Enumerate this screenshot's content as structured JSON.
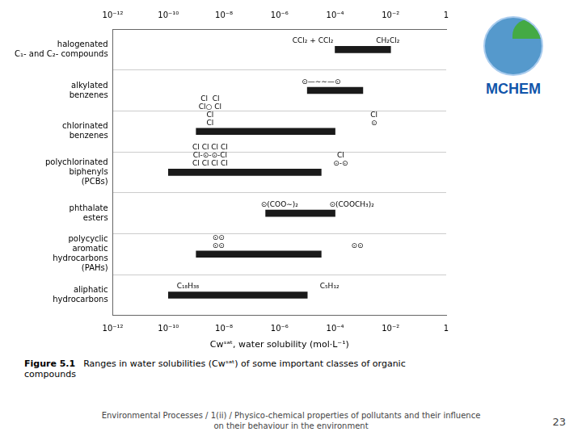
{
  "chart_data": {
    "type": "bar",
    "orientation": "horizontal",
    "title": "Figure 5.1",
    "caption": "Ranges in water solubilities (Cwˢᵃᵗ) of some important classes of organic\ncompounds",
    "xlabel": "Cwˢᵃᵗ, water solubility (mol·L⁻¹)",
    "categories": [
      "halogenated\nC₁- and C₂- compounds",
      "alkylated\nbenzenes",
      "chlorinated\nbenzenes",
      "polychlorinated\nbiphenyls\n(PCBs)",
      "phthalate\nesters",
      "polycyclic\naromatic\nhydrocarbons\n(PAHs)",
      "aliphatic\nhydrocarbons"
    ],
    "values": [
      [
        0.0001,
        0.01
      ],
      [
        1e-05,
        0.001
      ],
      [
        1e-09,
        0.0001
      ],
      [
        1e-10,
        3.1622776601683795e-05
      ],
      [
        3.162277660168379e-07,
        0.0001
      ],
      [
        1e-09,
        3.1622776601683795e-05
      ],
      [
        1e-10,
        1e-05
      ]
    ],
    "color": "#1a1a1a",
    "log": "x",
    "xlim": [
      1e-12,
      1
    ],
    "xticks": [
      {
        "value": 1e-12,
        "label": "10⁻¹²"
      },
      {
        "value": 1e-10,
        "label": "10⁻¹⁰"
      },
      {
        "value": 1e-08,
        "label": "10⁻⁸"
      },
      {
        "value": 1e-06,
        "label": "10⁻⁶"
      },
      {
        "value": 0.0001,
        "label": "10⁻⁴"
      },
      {
        "value": 0.01,
        "label": "10⁻²"
      },
      1
    ],
    "grid": false,
    "annotations": [
      {
        "text": "CCl₂ + CCl₂",
        "x": 1.5848931924611134e-05,
        "category": "halogenated\nC₁- and C₂- compounds"
      },
      {
        "text": "CH₂Cl₂",
        "x": 0.007943282347242814,
        "category": "halogenated\nC₁- and C₂- compounds"
      },
      {
        "text": "⊙—∼∼—⊙",
        "x": 3.1622776601683795e-05,
        "category": "alkylated\nbenzenes"
      },
      {
        "text": "Cl  Cl\nCl○ Cl\nCl\nCl",
        "x": 3.1622776601683795e-09,
        "category": "chlorinated\nbenzenes"
      },
      {
        "text": "Cl\n⊙",
        "x": 0.0025118864315095794,
        "category": "chlorinated\nbenzenes"
      },
      {
        "text": "Cl Cl Cl Cl\nCl-⊙-⊙-Cl\nCl Cl Cl Cl",
        "x": 3.1622776601683795e-09,
        "category": "polychlorinated\nbiphenyls\n(PCBs)"
      },
      {
        "text": "Cl\n⊙-⊙",
        "x": 0.00015848931924611142,
        "category": "polychlorinated\nbiphenyls\n(PCBs)"
      },
      {
        "text": "⊙(COO∼)₂",
        "x": 1e-06,
        "category": "phthalate\nesters"
      },
      {
        "text": "⊙(COOCH₃)₂",
        "x": 0.00039810717055349735,
        "category": "phthalate\nesters"
      },
      {
        "text": "⊙⊙\n⊙⊙",
        "x": 6.309573444801943e-09,
        "category": "polycyclic\naromatic\nhydrocarbons\n(PAHs)"
      },
      {
        "text": "⊙⊙",
        "x": 0.000630957344480193,
        "category": "polycyclic\naromatic\nhydrocarbons\n(PAHs)"
      },
      {
        "text": "C₁₈H₃₈",
        "x": 5.011872336272725e-10,
        "category": "aliphatic\nhydrocarbons"
      },
      {
        "text": "C₅H₁₂",
        "x": 6.309573444801941e-05,
        "category": "aliphatic\nhydrocarbons"
      }
    ],
    "footer": [
      "Environmental Processes / 1(ii) / Physico-chemical properties of pollutants and their influence",
      "on their behaviour in the environment"
    ],
    "page": "23",
    "logo": "MCHEM"
  }
}
